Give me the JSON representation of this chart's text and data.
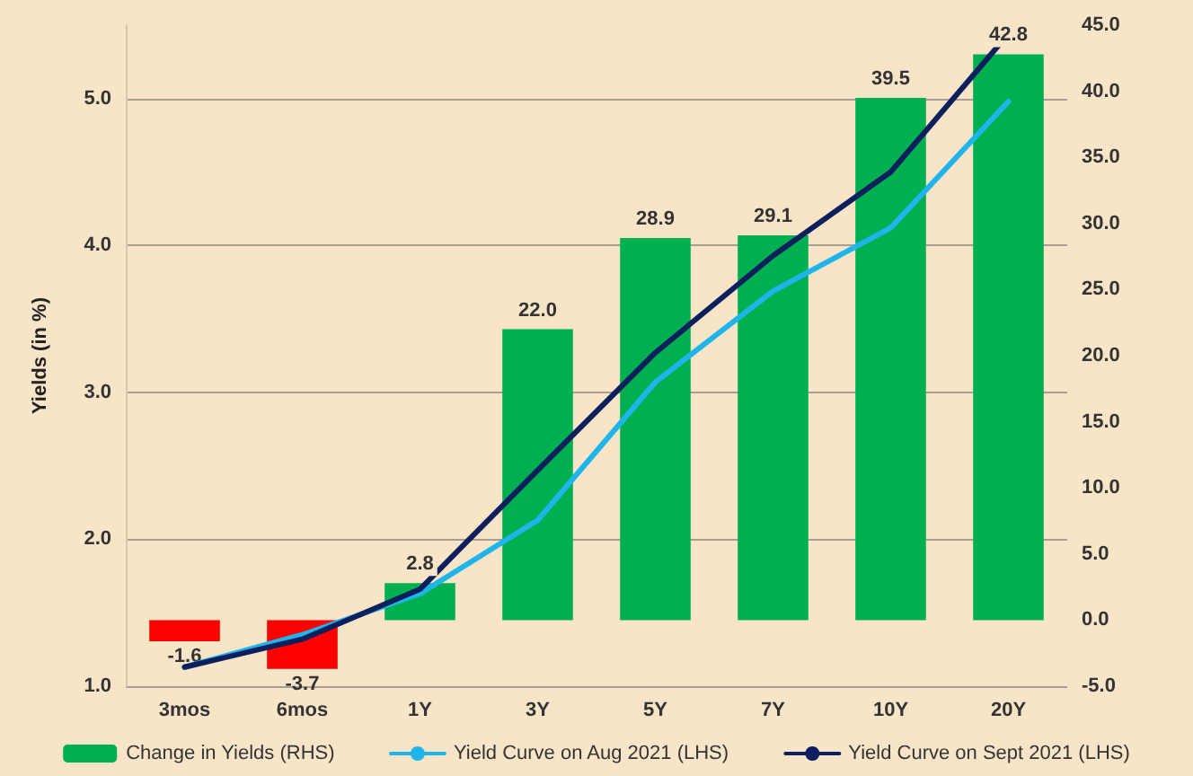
{
  "chart_data": {
    "type": "bar",
    "ylabel": "Yields (in %)",
    "categories": [
      "3mos",
      "6mos",
      "1Y",
      "3Y",
      "5Y",
      "7Y",
      "10Y",
      "20Y"
    ],
    "series": [
      {
        "name": "Change in Yields (RHS)",
        "axis": "y2",
        "value_labels": [
          "-1.6",
          "-3.7",
          "2.8",
          "22.0",
          "28.9",
          "29.1",
          "39.5",
          "42.8"
        ],
        "color": "#00b050",
        "colors": [
          "#ff0000",
          "#ff0000",
          "#00b050",
          "#00b050",
          "#00b050",
          "#00b050",
          "#00b050",
          "#00b050"
        ],
        "values": [
          -1.6,
          -3.7,
          2.8,
          22.0,
          28.9,
          29.1,
          39.5,
          42.8
        ]
      },
      {
        "name": "Yield Curve on Aug 2021 (LHS)",
        "type": "line",
        "color": "#1fb4ea",
        "values": [
          1.13,
          1.35,
          1.63,
          2.13,
          3.07,
          3.69,
          4.12,
          4.98
        ]
      },
      {
        "name": "Yield Curve on Sept 2021 (LHS)",
        "type": "line",
        "color": "#0d1f5c",
        "values": [
          1.13,
          1.32,
          1.66,
          2.47,
          3.27,
          3.93,
          4.5,
          5.44
        ]
      }
    ],
    "ylim": [
      1,
      5.5
    ],
    "yticks": [
      {
        "value": 1,
        "label": "1.0"
      },
      {
        "value": 2,
        "label": "2.0"
      },
      {
        "value": 3,
        "label": "3.0"
      },
      {
        "value": 4,
        "label": "4.0"
      },
      {
        "value": 5,
        "label": "5.0"
      }
    ],
    "y2lim": [
      -5,
      45
    ],
    "y2ticks": [
      {
        "value": -5,
        "label": "-5.0"
      },
      {
        "value": 0,
        "label": "0.0"
      },
      {
        "value": 5,
        "label": "5.0"
      },
      {
        "value": 10,
        "label": "10.0"
      },
      {
        "value": 15,
        "label": "15.0"
      },
      {
        "value": 20,
        "label": "20.0"
      },
      {
        "value": 25,
        "label": "25.0"
      },
      {
        "value": 30,
        "label": "30.0"
      },
      {
        "value": 35,
        "label": "35.0"
      },
      {
        "value": 40,
        "label": "40.0"
      },
      {
        "value": 45,
        "label": "45.0"
      }
    ],
    "grid": "y",
    "legend": "bottom",
    "marker": "none"
  }
}
